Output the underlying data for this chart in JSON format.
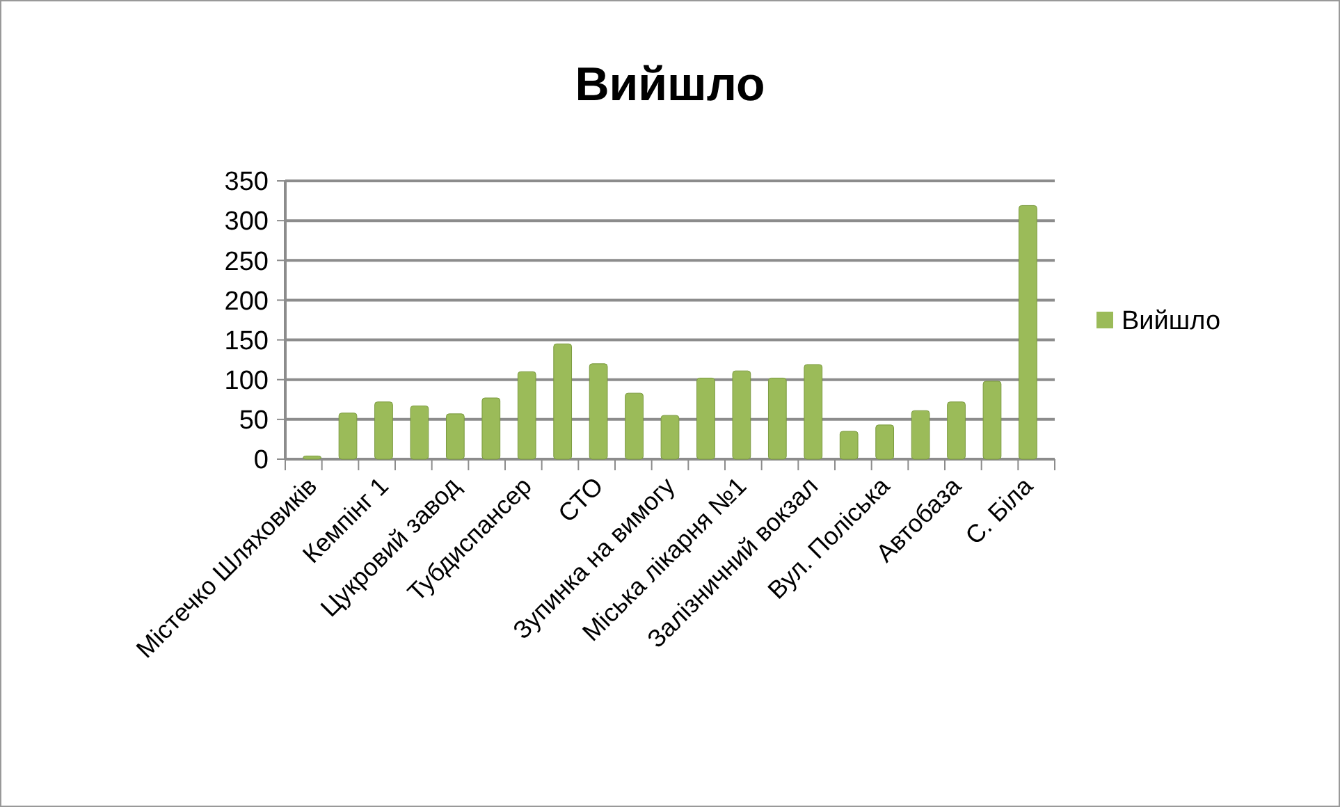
{
  "chart_data": {
    "type": "bar",
    "title": "Вийшло",
    "categories": [
      "Містечко Шляховиків",
      null,
      "Кемпінг 1",
      null,
      "Цукровий завод",
      null,
      "Тубдиспансер",
      null,
      "СТО",
      null,
      "Зупинка на вимогу",
      null,
      "Міська лікарня №1",
      null,
      "Залізничний вокзал",
      null,
      "Вул. Поліська",
      null,
      "Автобаза",
      null,
      "С. Біла"
    ],
    "series": [
      {
        "name": "Вийшло",
        "color": "#9bbb59",
        "values": [
          4,
          58,
          72,
          67,
          57,
          77,
          110,
          145,
          120,
          83,
          55,
          102,
          111,
          102,
          119,
          35,
          43,
          61,
          72,
          98,
          319
        ]
      }
    ],
    "ylim": [
      0,
      350
    ],
    "yticks": [
      0,
      50,
      100,
      150,
      200,
      250,
      300,
      350
    ],
    "grid": "y",
    "legend": "right"
  }
}
